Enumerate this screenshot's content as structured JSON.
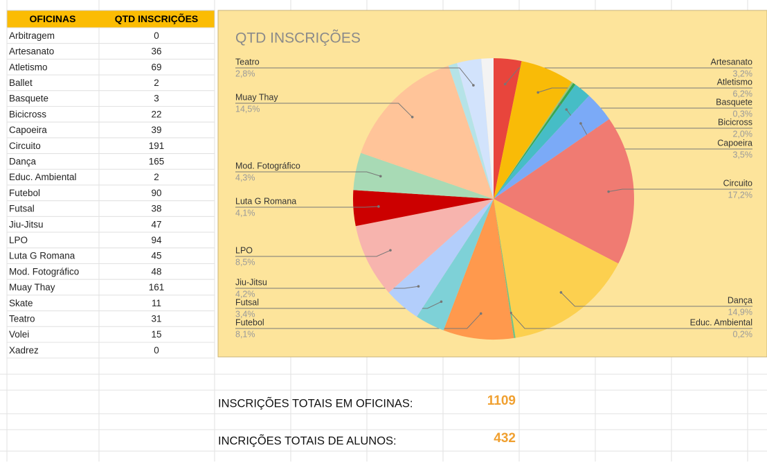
{
  "table": {
    "header": [
      "OFICINAS",
      "QTD INSCRIÇÕES"
    ],
    "rows": [
      [
        "Arbitragem",
        0
      ],
      [
        "Artesanato",
        36
      ],
      [
        "Atletismo",
        69
      ],
      [
        "Ballet",
        2
      ],
      [
        "Basquete",
        3
      ],
      [
        "Bicicross",
        22
      ],
      [
        "Capoeira",
        39
      ],
      [
        "Circuito",
        191
      ],
      [
        "Dança",
        165
      ],
      [
        "Educ. Ambiental",
        2
      ],
      [
        "Futebol",
        90
      ],
      [
        "Futsal",
        38
      ],
      [
        "Jiu-Jitsu",
        47
      ],
      [
        "LPO",
        94
      ],
      [
        "Luta G Romana",
        45
      ],
      [
        "Mod. Fotográfico",
        48
      ],
      [
        "Muay Thay",
        161
      ],
      [
        "Skate",
        11
      ],
      [
        "Teatro",
        31
      ],
      [
        "Volei",
        15
      ],
      [
        "Xadrez",
        0
      ]
    ]
  },
  "chart_data": {
    "type": "pie",
    "title": "QTD INSCRIÇÕES",
    "categories": [
      "Artesanato",
      "Atletismo",
      null,
      "Basquete",
      "Bicicross",
      "Capoeira",
      "Circuito",
      "Dança",
      "Educ. Ambiental",
      "Futebol",
      "Futsal",
      "Jiu-Jitsu",
      "LPO",
      "Luta G Romana",
      "Mod. Fotográfico",
      "Muay Thay",
      null,
      "Teatro",
      null
    ],
    "values": [
      3.2,
      6.2,
      0.2,
      0.3,
      2.0,
      3.5,
      17.2,
      14.9,
      0.2,
      8.1,
      3.4,
      4.2,
      8.5,
      4.1,
      4.3,
      14.5,
      1.0,
      2.8,
      1.4
    ],
    "value_labels": [
      "3,2%",
      "6,2%",
      null,
      "0,3%",
      "2,0%",
      "3,5%",
      "17,2%",
      "14,9%",
      "0,2%",
      "8,1%",
      "3,4%",
      "4,2%",
      "8,5%",
      "4,1%",
      "4,3%",
      "14,5%",
      null,
      "2,8%",
      null
    ],
    "colors": [
      "#e8453c",
      "#f9bb07",
      "#9fc37a",
      "#34a853",
      "#46bdc6",
      "#7baaf7",
      "#f07b72",
      "#fcd04f",
      "#71c287",
      "#ff994d",
      "#7ed1d7",
      "#b3cefb",
      "#f7b4ae",
      "#cc0000",
      "#a8dab5",
      "#ffc499",
      "#b5e3e7",
      "#d2e3fc",
      "#f3f3f3"
    ]
  },
  "summary": [
    {
      "label": "INSCRIÇÕES TOTAIS EM OFICINAS:",
      "value": 1109
    },
    {
      "label": "INCRIÇÕES TOTAIS DE ALUNOS:",
      "value": 432
    }
  ]
}
